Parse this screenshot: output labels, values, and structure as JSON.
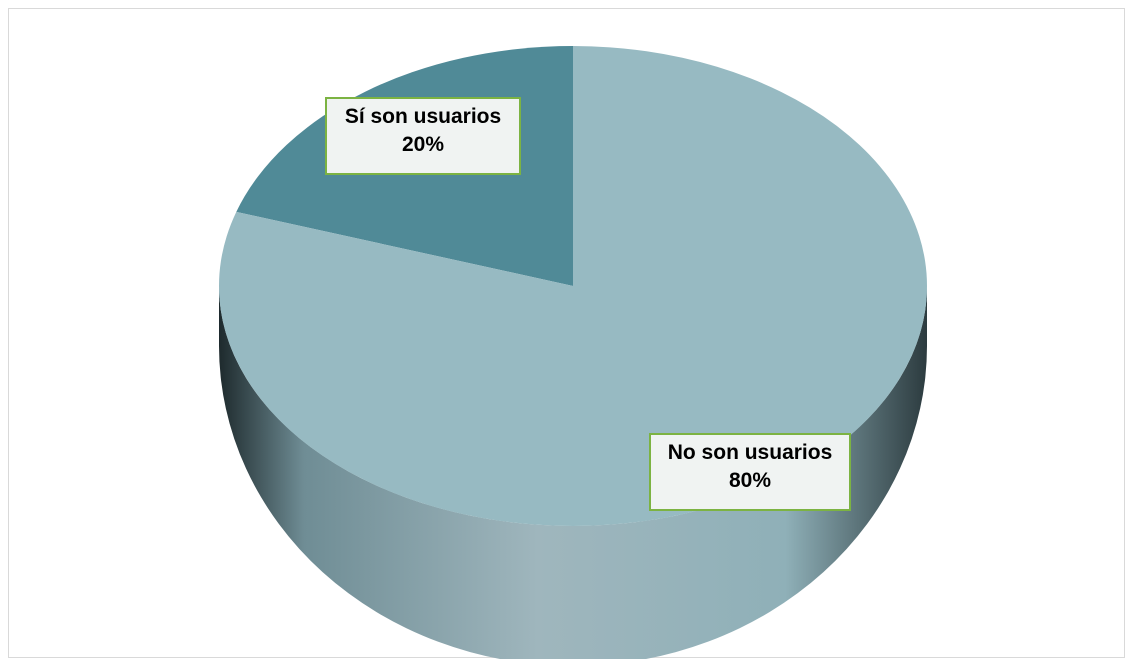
{
  "chart_data": {
    "type": "pie",
    "title": "",
    "three_d": true,
    "slices": [
      {
        "label": "Sí son usuarios",
        "value": 20,
        "percent_text": "20%",
        "color": "#508a97"
      },
      {
        "label": "No son usuarios",
        "value": 80,
        "percent_text": "80%",
        "color": "#97bac2"
      }
    ],
    "label_border_color": "#7cb342",
    "label_background": "#f0f3f2"
  }
}
